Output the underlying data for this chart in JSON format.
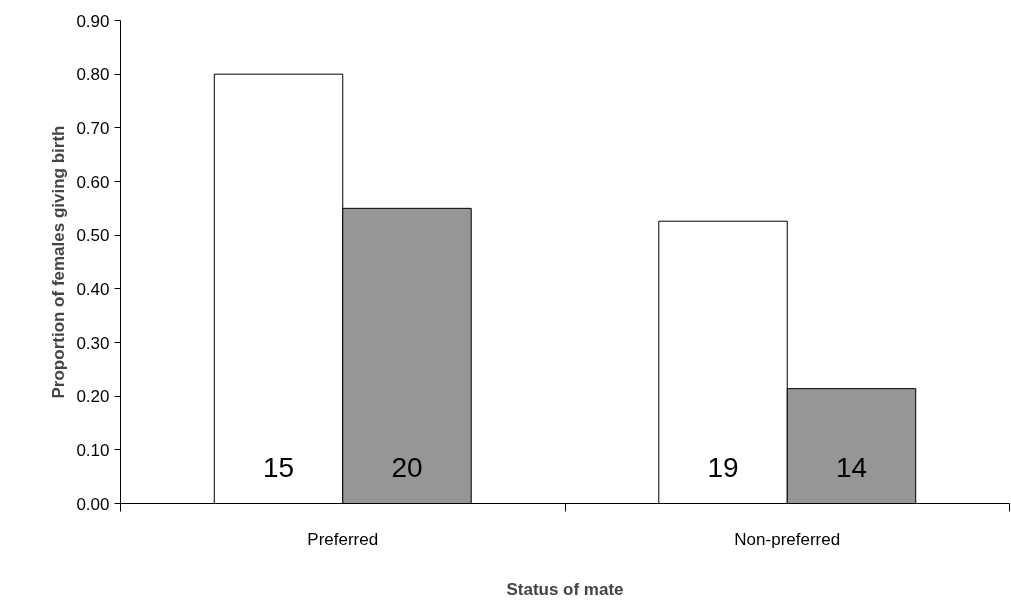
{
  "chart_data": {
    "type": "bar",
    "xlabel": "Status of mate",
    "ylabel": "Proportion of females giving birth",
    "categories": [
      "Preferred",
      "Non-preferred"
    ],
    "series": [
      {
        "color": "#ffffff",
        "values": [
          0.8,
          0.526
        ]
      },
      {
        "color": "#969696",
        "values": [
          0.55,
          0.214
        ]
      }
    ],
    "annotations": [
      "15",
      "20",
      "19",
      "14"
    ],
    "ylim": [
      0,
      0.9
    ],
    "yticks": [
      {
        "value": 0,
        "label": "0.00"
      },
      {
        "value": 0.1,
        "label": "0.10"
      },
      {
        "value": 0.2,
        "label": "0.20"
      },
      {
        "value": 0.3,
        "label": "0.30"
      },
      {
        "value": 0.4,
        "label": "0.40"
      },
      {
        "value": 0.5,
        "label": "0.50"
      },
      {
        "value": 0.6,
        "label": "0.60"
      },
      {
        "value": 0.7,
        "label": "0.70"
      },
      {
        "value": 0.8,
        "label": "0.80"
      },
      {
        "value": 0.9,
        "label": "0.90"
      }
    ],
    "grid": false
  }
}
